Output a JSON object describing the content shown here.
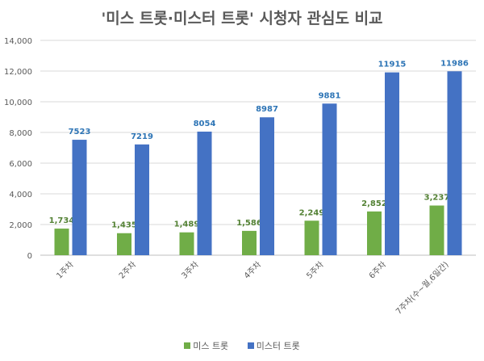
{
  "chart_data": {
    "type": "bar",
    "title": "'미스 트롯·미스터 트롯' 시청자 관심도 비교",
    "categories": [
      "1주차",
      "2주차",
      "3주차",
      "4주차",
      "5주차",
      "6주차",
      "7주차(수~월,6일간)"
    ],
    "series": [
      {
        "name": "미스 트롯",
        "color": "#70AD47",
        "values": [
          1734,
          1435,
          1489,
          1586,
          2249,
          2852,
          3237
        ],
        "labels": [
          "1,734",
          "1,435",
          "1,489",
          "1,586",
          "2,249",
          "2,852",
          "3,237"
        ]
      },
      {
        "name": "미스터 트롯",
        "color": "#4472C4",
        "values": [
          7523,
          7219,
          8054,
          8987,
          9881,
          11915,
          11986
        ],
        "labels": [
          "7523",
          "7219",
          "8054",
          "8987",
          "9881",
          "11915",
          "11986"
        ]
      }
    ],
    "ylim": [
      0,
      14000
    ],
    "yticks": [
      "0",
      "2,000",
      "4,000",
      "6,000",
      "8,000",
      "10,000",
      "12,000",
      "14,000"
    ],
    "grid": true,
    "legend": "bottom"
  }
}
